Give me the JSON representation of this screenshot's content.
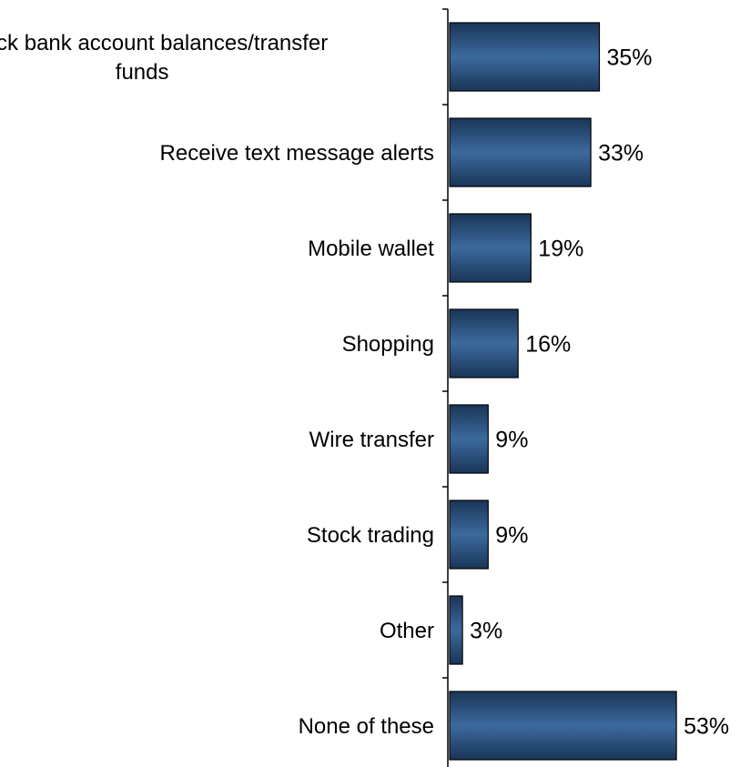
{
  "chart_data": {
    "type": "bar",
    "orientation": "horizontal",
    "categories": [
      [
        "Check bank account balances/transfer",
        "funds"
      ],
      [
        "Receive text message alerts"
      ],
      [
        "Mobile wallet"
      ],
      [
        "Shopping"
      ],
      [
        "Wire transfer"
      ],
      [
        "Stock trading"
      ],
      [
        "Other"
      ],
      [
        "None of these"
      ]
    ],
    "values": [
      35,
      33,
      19,
      16,
      9,
      9,
      3,
      53
    ],
    "value_labels": [
      "35%",
      "33%",
      "19%",
      "16%",
      "9%",
      "9%",
      "3%",
      "53%"
    ],
    "unit": "%",
    "xlim": [
      0,
      60
    ],
    "grid": false,
    "legend": "none",
    "colors": {
      "bar_dark": "#1a3558",
      "bar_light": "#3c6a9e",
      "bar_outline": "#000000",
      "axis": "#000000"
    }
  }
}
